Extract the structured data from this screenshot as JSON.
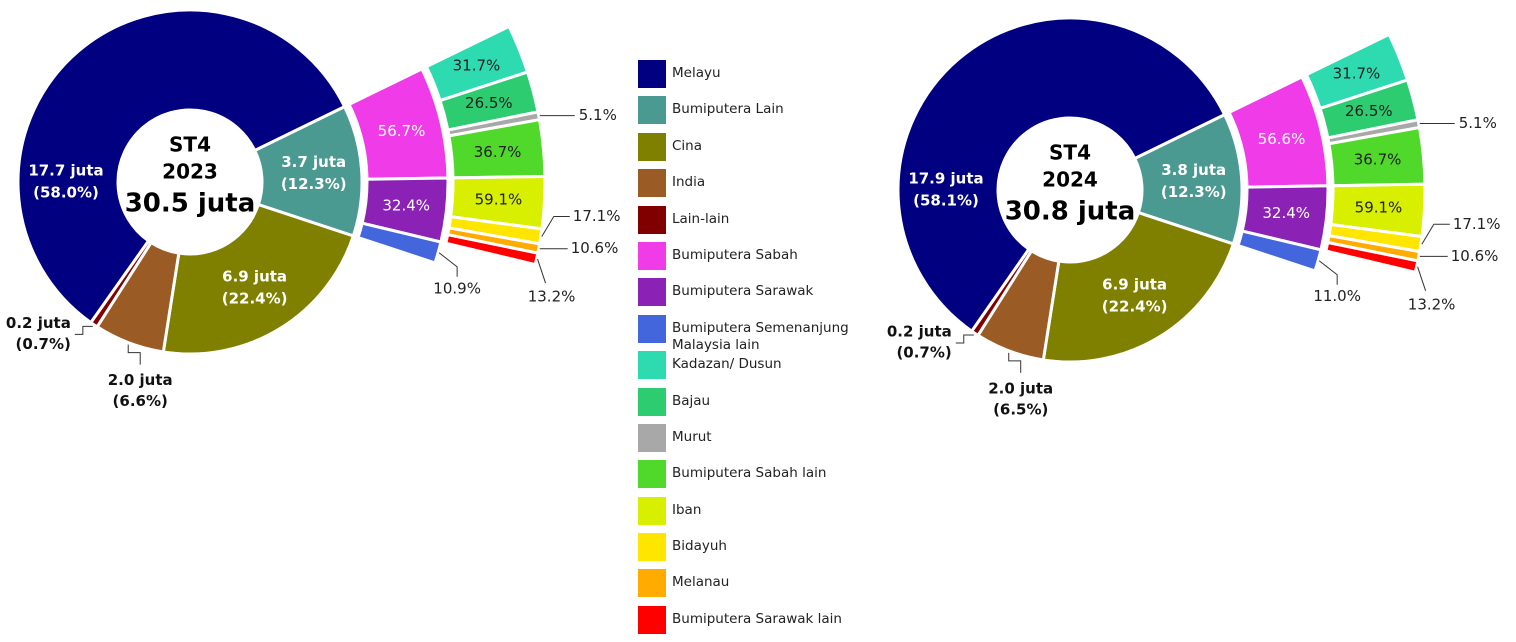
{
  "chart_data": [
    {
      "type": "sunburst",
      "center_label": "ST4",
      "year": "2023",
      "total": 30.5,
      "total_label": "30.5 juta",
      "inner": {
        "colors": [
          "#4a9a92",
          "#808000",
          "#9a5b24",
          "#800000",
          "#000080"
        ],
        "values": [
          12.3,
          22.4,
          6.6,
          0.7,
          58.0
        ],
        "value_labels": [
          "(12.3%)",
          "(22.4%)",
          "(6.6%)",
          "(0.7%)",
          "(58.0%)"
        ],
        "millions": [
          3.7,
          6.9,
          2.0,
          0.2,
          17.7
        ],
        "millions_labels": [
          "3.7 juta",
          "6.9 juta",
          "2.0 juta",
          "0.2 juta",
          "17.7 juta"
        ]
      },
      "ring2": {
        "colors": [
          "#f03ce8",
          "#8b22b5",
          "#4466dd"
        ],
        "values": [
          56.7,
          32.4,
          10.9
        ],
        "value_labels": [
          "56.7%",
          "32.4%",
          "10.9%"
        ]
      },
      "ring3": [
        {
          "colors": [
            "#2edbb0",
            "#2ecc71",
            "#a8a8a8",
            "#50d82a"
          ],
          "values": [
            31.7,
            26.5,
            5.1,
            36.7
          ],
          "value_labels": [
            "31.7%",
            "26.5%",
            "5.1%",
            "36.7%"
          ]
        },
        {
          "colors": [
            "#d8f000",
            "#ffe600",
            "#ffab00",
            "#ff0000"
          ],
          "values": [
            59.1,
            17.1,
            10.6,
            13.2
          ],
          "value_labels": [
            "59.1%",
            "17.1%",
            "10.6%",
            "13.2%"
          ]
        }
      ]
    },
    {
      "type": "sunburst",
      "center_label": "ST4",
      "year": "2024",
      "total": 30.8,
      "total_label": "30.8 juta",
      "inner": {
        "colors": [
          "#4a9a92",
          "#808000",
          "#9a5b24",
          "#800000",
          "#000080"
        ],
        "values": [
          12.3,
          22.4,
          6.5,
          0.7,
          58.1
        ],
        "value_labels": [
          "(12.3%)",
          "(22.4%)",
          "(6.5%)",
          "(0.7%)",
          "(58.1%)"
        ],
        "millions": [
          3.8,
          6.9,
          2.0,
          0.2,
          17.9
        ],
        "millions_labels": [
          "3.8 juta",
          "6.9 juta",
          "2.0 juta",
          "0.2 juta",
          "17.9 juta"
        ]
      },
      "ring2": {
        "colors": [
          "#f03ce8",
          "#8b22b5",
          "#4466dd"
        ],
        "values": [
          56.6,
          32.4,
          11.0
        ],
        "value_labels": [
          "56.6%",
          "32.4%",
          "11.0%"
        ]
      },
      "ring3": [
        {
          "colors": [
            "#2edbb0",
            "#2ecc71",
            "#a8a8a8",
            "#50d82a"
          ],
          "values": [
            31.7,
            26.5,
            5.1,
            36.7
          ],
          "value_labels": [
            "31.7%",
            "26.5%",
            "5.1%",
            "36.7%"
          ]
        },
        {
          "colors": [
            "#d8f000",
            "#ffe600",
            "#ffab00",
            "#ff0000"
          ],
          "values": [
            59.1,
            17.1,
            10.6,
            13.2
          ],
          "value_labels": [
            "59.1%",
            "17.1%",
            "10.6%",
            "13.2%"
          ]
        }
      ]
    }
  ],
  "legend": {
    "items": [
      {
        "name": "Melayu",
        "color": "#000080"
      },
      {
        "name": "Bumiputera Lain",
        "color": "#4a9a92"
      },
      {
        "name": "Cina",
        "color": "#808000"
      },
      {
        "name": "India",
        "color": "#9a5b24"
      },
      {
        "name": "Lain-lain",
        "color": "#800000"
      },
      {
        "name": "Bumiputera Sabah",
        "color": "#f03ce8"
      },
      {
        "name": "Bumiputera Sarawak",
        "color": "#8b22b5"
      },
      {
        "name": "Bumiputera Semenanjung Malaysia lain",
        "color": "#4466dd"
      },
      {
        "name": "Kadazan/ Dusun",
        "color": "#2edbb0"
      },
      {
        "name": "Bajau",
        "color": "#2ecc71"
      },
      {
        "name": "Murut",
        "color": "#a8a8a8"
      },
      {
        "name": "Bumiputera Sabah lain",
        "color": "#50d82a"
      },
      {
        "name": "Iban",
        "color": "#d8f000"
      },
      {
        "name": "Bidayuh",
        "color": "#ffe600"
      },
      {
        "name": "Melanau",
        "color": "#ffab00"
      },
      {
        "name": "Bumiputera Sarawak lain",
        "color": "#ff0000"
      }
    ]
  }
}
